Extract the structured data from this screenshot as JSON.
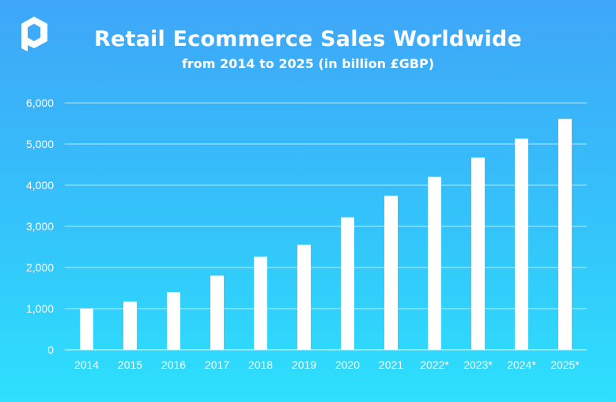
{
  "header": {
    "title": "Retail Ecommerce Sales Worldwide",
    "subtitle": "from 2014 to 2025 (in billion £GBP)"
  },
  "logo": {
    "icon": "brand-logo-icon"
  },
  "colors": {
    "background_top": "#3FA6F8",
    "background_bottom": "#2DE0FC",
    "bars": "#FFFFFF",
    "gridlines": "#FFFFFF",
    "text": "#FFFFFF"
  },
  "chart_data": {
    "type": "bar",
    "title": "Retail Ecommerce Sales Worldwide",
    "subtitle": "from 2014 to 2025 (in billion £GBP)",
    "xlabel": "",
    "ylabel": "",
    "categories": [
      "2014",
      "2015",
      "2016",
      "2017",
      "2018",
      "2019",
      "2020",
      "2021",
      "2022*",
      "2023*",
      "2024*",
      "2025*"
    ],
    "values": [
      1000,
      1170,
      1400,
      1800,
      2260,
      2550,
      3220,
      3740,
      4200,
      4670,
      5130,
      5610
    ],
    "ylim": [
      0,
      6000
    ],
    "yticks": [
      0,
      1000,
      2000,
      3000,
      4000,
      5000,
      6000
    ],
    "ytick_labels": [
      "0",
      "1,000",
      "2,000",
      "3,000",
      "4,000",
      "5,000",
      "6,000"
    ],
    "grid": true,
    "legend": "none"
  }
}
